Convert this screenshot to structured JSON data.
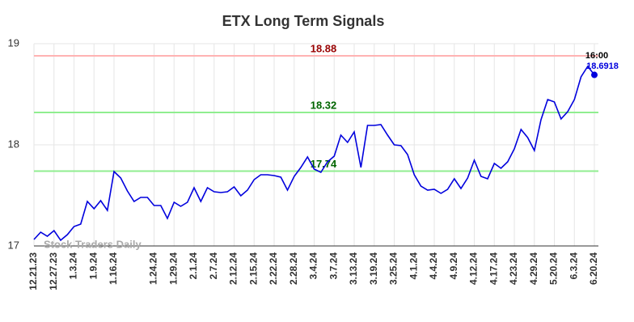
{
  "chart_data": {
    "type": "line",
    "title": "ETX Long Term Signals",
    "watermark": "Stock Traders Daily",
    "categories": [
      "12.21.23",
      null,
      null,
      "12.27.23",
      null,
      null,
      "1.3.24",
      null,
      null,
      "1.9.24",
      null,
      null,
      "1.16.24",
      null,
      null,
      null,
      null,
      null,
      "1.24.24",
      null,
      null,
      "1.29.24",
      null,
      null,
      "2.1.24",
      null,
      null,
      "2.7.24",
      null,
      null,
      "2.12.24",
      null,
      null,
      "2.15.24",
      null,
      null,
      "2.22.24",
      null,
      null,
      "2.28.24",
      null,
      null,
      "3.4.24",
      null,
      null,
      "3.7.24",
      null,
      null,
      "3.13.24",
      null,
      null,
      "3.19.24",
      null,
      null,
      "3.25.24",
      null,
      null,
      "4.1.24",
      null,
      null,
      "4.4.24",
      null,
      null,
      "4.9.24",
      null,
      null,
      "4.12.24",
      null,
      null,
      "4.17.24",
      null,
      null,
      "4.23.24",
      null,
      null,
      "4.29.24",
      null,
      null,
      "5.20.24",
      null,
      null,
      "6.3.24",
      null,
      null,
      "6.20.24"
    ],
    "series": [
      {
        "color": "#0000dd",
        "values": [
          17.064,
          17.136,
          17.096,
          17.152,
          17.056,
          17.112,
          17.192,
          17.216,
          17.44,
          17.368,
          17.448,
          17.352,
          17.736,
          17.672,
          17.544,
          17.44,
          17.48,
          17.48,
          17.4,
          17.4,
          17.272,
          17.432,
          17.392,
          17.432,
          17.576,
          17.44,
          17.576,
          17.536,
          17.528,
          17.536,
          17.584,
          17.496,
          17.552,
          17.656,
          17.704,
          17.704,
          17.696,
          17.68,
          17.552,
          17.688,
          17.776,
          17.88,
          17.76,
          17.728,
          17.832,
          17.888,
          18.096,
          18.024,
          18.128,
          17.776,
          18.192,
          18.192,
          18.2,
          18.096,
          18.0,
          17.992,
          17.904,
          17.704,
          17.592,
          17.552,
          17.56,
          17.52,
          17.56,
          17.664,
          17.568,
          17.672,
          17.848,
          17.688,
          17.664,
          17.816,
          17.768,
          17.832,
          17.96,
          18.152,
          18.072,
          17.944,
          18.248,
          18.448,
          18.424,
          18.256,
          18.328,
          18.448,
          18.672,
          18.776,
          18.6918
        ]
      }
    ],
    "last_label": "16:00",
    "hlines": [
      {
        "value": 18.88,
        "color": "#ffb3b3",
        "text_color": "#990000"
      },
      {
        "value": 18.32,
        "color": "#90ee90",
        "text_color": "#006600"
      },
      {
        "value": 17.74,
        "color": "#90ee90",
        "text_color": "#006600"
      }
    ],
    "ylim": [
      17,
      19
    ],
    "yticks": [
      17,
      18,
      19
    ],
    "grid": true
  }
}
